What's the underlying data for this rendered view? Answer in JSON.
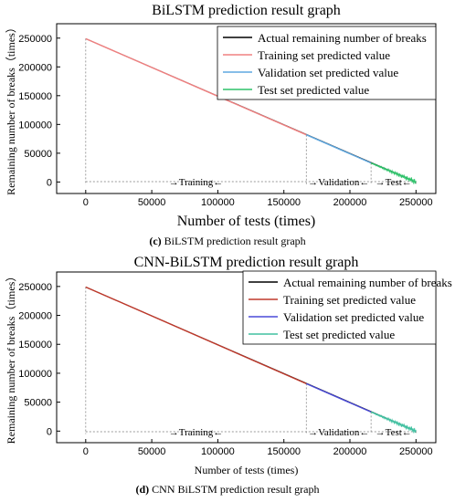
{
  "charts": [
    {
      "title": "BiLSTM prediction result graph",
      "caption_letter": "(c)",
      "caption_text": " BiLSTM prediction result graph",
      "xlabel": "Number of tests (times)",
      "ylabel": "Remaining number of breaks（times）",
      "legend": [
        {
          "label": "Actual remaining number of breaks",
          "color": "#000000"
        },
        {
          "label": "Training set predicted value",
          "color": "#f08080"
        },
        {
          "label": "Validation  set predicted value",
          "color": "#5fa8e0"
        },
        {
          "label": "Test set predicted value",
          "color": "#2ec26a"
        }
      ],
      "segment_labels": [
        "Training",
        "Validation",
        "Test"
      ]
    },
    {
      "title": "CNN-BiLSTM prediction result graph",
      "caption_letter": "(d)",
      "caption_text": " CNN BiLSTM prediction result graph",
      "xlabel": "Number of tests (times)",
      "ylabel": "Remaining number of breaks（times）",
      "legend": [
        {
          "label": "Actual remaining number of breaks",
          "color": "#000000"
        },
        {
          "label": "Training set predicted value",
          "color": "#c0392b"
        },
        {
          "label": "Validation  set predicted value",
          "color": "#4a4ad8"
        },
        {
          "label": "Test set predicted value",
          "color": "#40c0a0"
        }
      ],
      "segment_labels": [
        "Training",
        "Validation",
        "Test"
      ]
    }
  ],
  "chart_data": [
    {
      "type": "line",
      "title": "BiLSTM prediction result graph",
      "xlabel": "Number of tests (times)",
      "ylabel": "Remaining number of breaks（times）",
      "xlim": [
        -22000,
        265000
      ],
      "ylim": [
        -20000,
        275000
      ],
      "xticks": [
        0,
        50000,
        100000,
        150000,
        200000,
        250000
      ],
      "yticks": [
        0,
        50000,
        100000,
        150000,
        200000,
        250000
      ],
      "series": [
        {
          "name": "Actual remaining number of breaks",
          "x": [
            0,
            250000
          ],
          "y": [
            249000,
            0
          ]
        },
        {
          "name": "Training set predicted value",
          "x": [
            0,
            167000
          ],
          "y": [
            249000,
            82000
          ]
        },
        {
          "name": "Validation  set predicted value",
          "x": [
            167000,
            216000
          ],
          "y": [
            82000,
            33000
          ]
        },
        {
          "name": "Test set predicted value",
          "x": [
            216000,
            250000
          ],
          "y": [
            33000,
            0
          ]
        }
      ],
      "splits": [
        167000,
        216000
      ],
      "legend_position": "top-right",
      "grid": false
    },
    {
      "type": "line",
      "title": "CNN-BiLSTM prediction result graph",
      "xlabel": "Number of tests (times)",
      "ylabel": "Remaining number of breaks（times）",
      "xlim": [
        -22000,
        265000
      ],
      "ylim": [
        -20000,
        275000
      ],
      "xticks": [
        0,
        50000,
        100000,
        150000,
        200000,
        250000
      ],
      "yticks": [
        0,
        50000,
        100000,
        150000,
        200000,
        250000
      ],
      "series": [
        {
          "name": "Actual remaining number of breaks",
          "x": [
            0,
            250000
          ],
          "y": [
            249000,
            0
          ]
        },
        {
          "name": "Training set predicted value",
          "x": [
            0,
            167000
          ],
          "y": [
            249000,
            82000
          ]
        },
        {
          "name": "Validation  set predicted value",
          "x": [
            167000,
            216000
          ],
          "y": [
            82000,
            33000
          ]
        },
        {
          "name": "Test set predicted value",
          "x": [
            216000,
            250000
          ],
          "y": [
            33000,
            0
          ]
        }
      ],
      "splits": [
        167000,
        216000
      ],
      "legend_position": "top-right",
      "grid": false
    }
  ]
}
